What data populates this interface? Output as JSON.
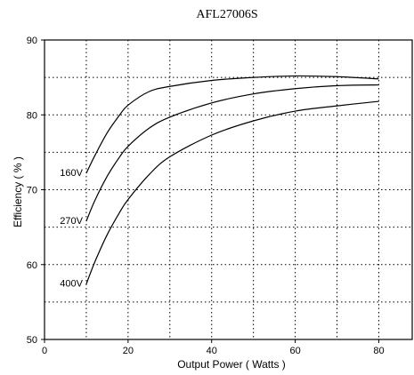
{
  "chart_data": {
    "type": "line",
    "title": "AFL27006S",
    "xlabel": "Output Power ( Watts )",
    "ylabel": "Efficiency ( % )",
    "xlim": [
      0,
      88
    ],
    "ylim": [
      50,
      90
    ],
    "xticks": [
      0,
      20,
      40,
      60,
      80
    ],
    "yticks": [
      50,
      60,
      70,
      80,
      90
    ],
    "grid": "dotted",
    "series": [
      {
        "name": "160V",
        "x": [
          10,
          12,
          15,
          18,
          20,
          25,
          30,
          40,
          50,
          60,
          70,
          80
        ],
        "y": [
          72.2,
          74.5,
          77.6,
          80.0,
          81.3,
          83.1,
          83.8,
          84.6,
          85.0,
          85.2,
          85.1,
          84.8
        ]
      },
      {
        "name": "270V",
        "x": [
          10,
          12,
          15,
          18,
          20,
          25,
          30,
          40,
          50,
          60,
          70,
          80
        ],
        "y": [
          65.8,
          68.5,
          71.8,
          74.4,
          75.8,
          78.2,
          79.7,
          81.6,
          82.8,
          83.5,
          83.9,
          84.0
        ]
      },
      {
        "name": "400V",
        "x": [
          10,
          12,
          15,
          18,
          20,
          25,
          30,
          40,
          50,
          60,
          70,
          80
        ],
        "y": [
          57.4,
          60.3,
          64.0,
          67.0,
          68.7,
          72.0,
          74.4,
          77.3,
          79.2,
          80.5,
          81.2,
          81.8
        ]
      }
    ]
  }
}
